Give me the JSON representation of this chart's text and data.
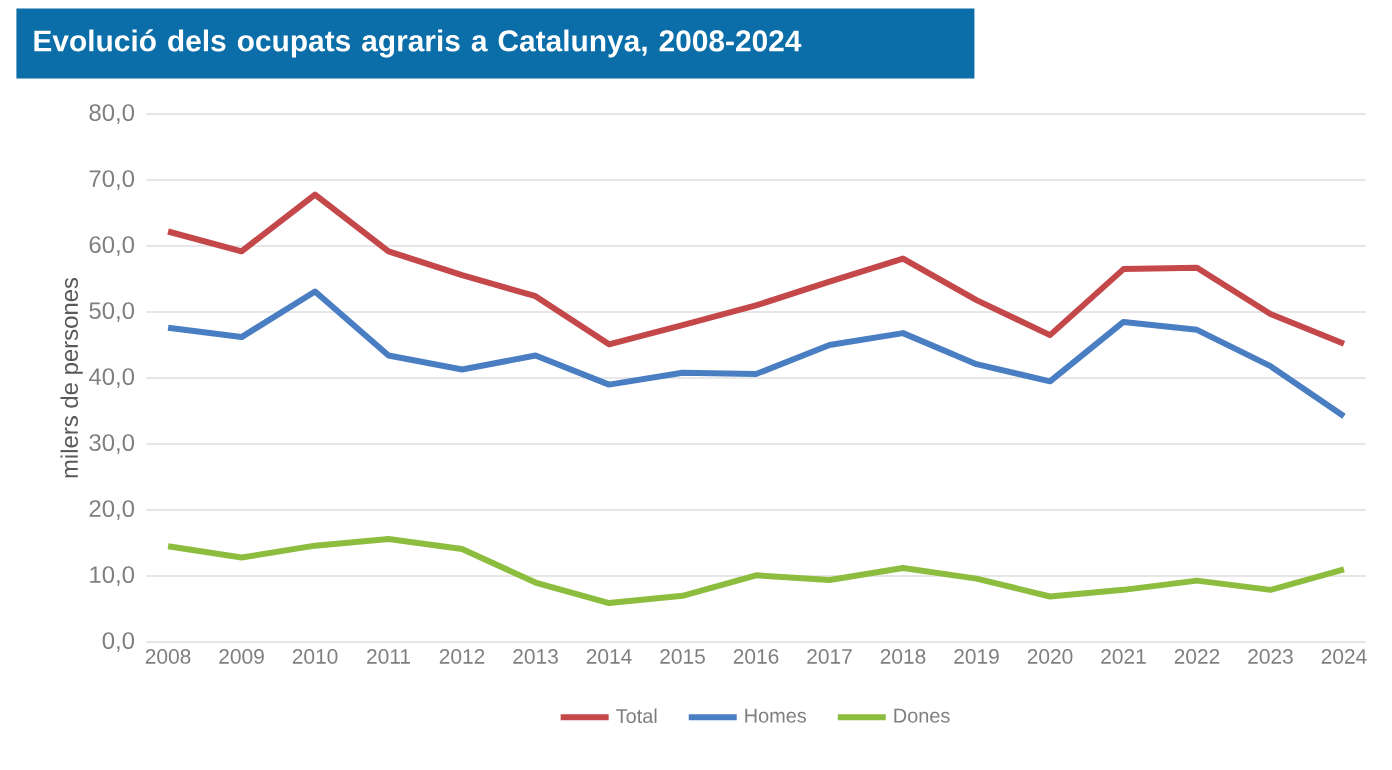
{
  "chart_data": {
    "type": "line",
    "title": "Evolució dels ocupats agraris a Catalunya, 2008-2024",
    "ylabel": "milers de persones",
    "categories": [
      "2008",
      "2009",
      "2010",
      "2011",
      "2012",
      "2013",
      "2014",
      "2015",
      "2016",
      "2017",
      "2018",
      "2019",
      "2020",
      "2021",
      "2022",
      "2023",
      "2024"
    ],
    "series": [
      {
        "name": "Total",
        "color": "#c4474a",
        "values": [
          62.2,
          59.2,
          67.8,
          59.2,
          55.6,
          52.4,
          45.1,
          48.0,
          51.0,
          54.6,
          58.1,
          51.8,
          46.5,
          56.5,
          56.7,
          49.7,
          45.2
        ]
      },
      {
        "name": "Homes",
        "color": "#4a7ec2",
        "values": [
          47.6,
          46.2,
          53.1,
          43.4,
          41.3,
          43.4,
          39.0,
          40.8,
          40.6,
          45.0,
          46.8,
          42.1,
          39.5,
          48.5,
          47.3,
          41.8,
          34.2
        ]
      },
      {
        "name": "Dones",
        "color": "#8dbd3f",
        "values": [
          14.5,
          12.8,
          14.6,
          15.6,
          14.1,
          9.0,
          5.9,
          7.0,
          10.1,
          9.4,
          11.2,
          9.6,
          6.9,
          7.9,
          9.3,
          7.9,
          11.0
        ]
      }
    ],
    "ylim": [
      0,
      80
    ],
    "yticks": [
      {
        "value": 0,
        "label": "0,0"
      },
      {
        "value": 10,
        "label": "10,0"
      },
      {
        "value": 20,
        "label": "20,0"
      },
      {
        "value": 30,
        "label": "30,0"
      },
      {
        "value": 40,
        "label": "40,0"
      },
      {
        "value": 50,
        "label": "50,0"
      },
      {
        "value": 60,
        "label": "60,0"
      },
      {
        "value": 70,
        "label": "70,0"
      },
      {
        "value": 80,
        "label": "80,0"
      }
    ],
    "grid": "y",
    "legend": "bottom"
  }
}
